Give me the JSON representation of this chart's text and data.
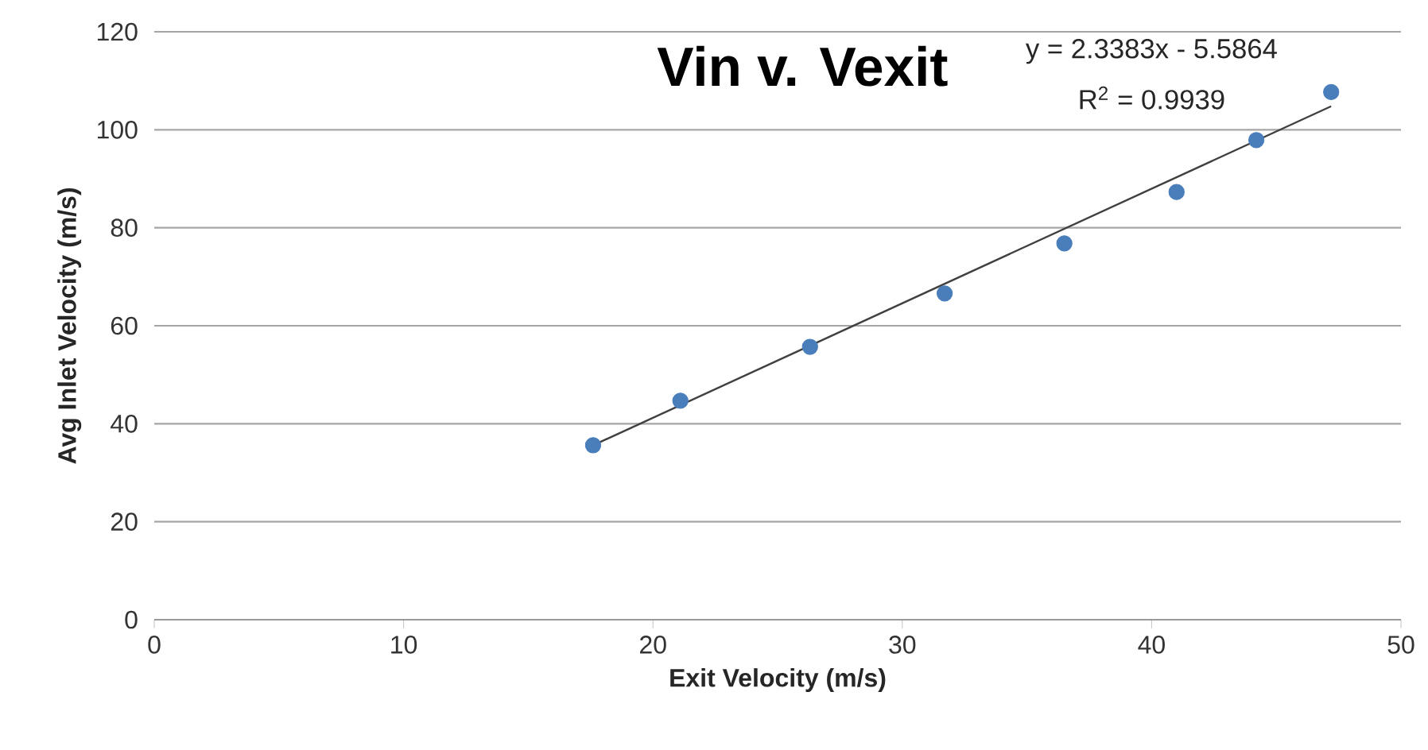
{
  "chart_data": {
    "type": "scatter",
    "title": "Vin v. Vexit",
    "xlabel": "Exit Velocity (m/s)",
    "ylabel": "Avg Inlet Velocity (m/s)",
    "annotations": [
      "y = 2.3383x - 5.5864",
      "R$^{2}$ = 0.9939"
    ],
    "series": [
      {
        "color": "#4a7ebb",
        "marker": "circle",
        "x": [
          17.6,
          21.1,
          26.3,
          31.7,
          36.5,
          41.0,
          44.2,
          47.2
        ],
        "values": [
          35.6,
          44.7,
          55.7,
          66.6,
          76.8,
          87.3,
          97.9,
          107.7
        ]
      },
      {
        "type": "line",
        "color": "#404040",
        "marker": "none",
        "line_style": "solid",
        "x": [
          17.6,
          47.2
        ],
        "values": [
          35.6,
          104.8
        ]
      }
    ],
    "xlim": [
      0,
      50
    ],
    "ylim": [
      0,
      120
    ],
    "xticks": [
      0,
      10,
      20,
      30,
      40,
      50
    ],
    "yticks": [
      0,
      20,
      40,
      60,
      80,
      100,
      120
    ],
    "grid": "y"
  }
}
